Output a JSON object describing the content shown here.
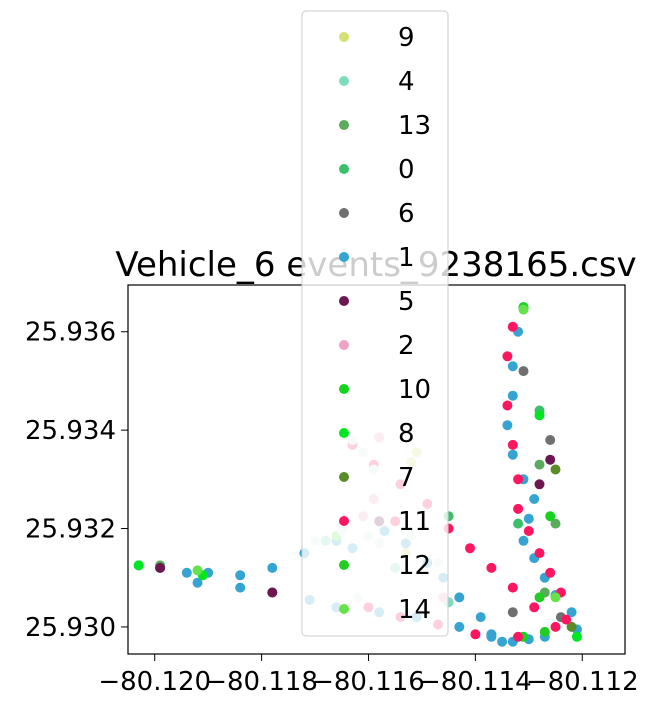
{
  "chart_data": {
    "type": "scatter",
    "title": "Vehicle_6 events_9238165.csv",
    "xlabel": "",
    "ylabel": "",
    "xlim": [
      -80.1205,
      -80.1112
    ],
    "ylim": [
      25.92945,
      25.93695
    ],
    "xticks": [
      -80.12,
      -80.118,
      -80.116,
      -80.114,
      -80.112
    ],
    "xtick_labels": [
      "−80.120",
      "−80.118",
      "−80.116",
      "−80.114",
      "−80.112"
    ],
    "yticks": [
      25.93,
      25.932,
      25.934,
      25.936
    ],
    "ytick_labels": [
      "25.930",
      "25.932",
      "25.934",
      "25.936"
    ],
    "grid": false,
    "legend_position": "upper-center",
    "series": [
      {
        "name": "9",
        "color": "#d4df74",
        "points": [
          [
            -80.1151,
            25.93355
          ],
          [
            -80.1152,
            25.93335
          ],
          [
            -80.1153,
            25.9315
          ]
        ]
      },
      {
        "name": "4",
        "color": "#7ddcbe",
        "points": [
          [
            -80.1168,
            25.93175
          ],
          [
            -80.1155,
            25.9312
          ],
          [
            -80.1145,
            25.9305
          ]
        ]
      },
      {
        "name": "13",
        "color": "#5aab5b",
        "points": [
          [
            -80.1128,
            25.9333
          ],
          [
            -80.1125,
            25.9321
          ],
          [
            -80.1127,
            25.9307
          ],
          [
            -80.1199,
            25.93125
          ]
        ]
      },
      {
        "name": "0",
        "color": "#3cbf6a",
        "points": [
          [
            -80.1132,
            25.9321
          ],
          [
            -80.1145,
            25.93225
          ],
          [
            -80.1128,
            25.9344
          ]
        ]
      },
      {
        "name": "6",
        "color": "#707070",
        "points": [
          [
            -80.1131,
            25.9352
          ],
          [
            -80.1126,
            25.9338
          ],
          [
            -80.1124,
            25.9302
          ],
          [
            -80.1133,
            25.9303
          ]
        ]
      },
      {
        "name": "1",
        "color": "#36a4d0",
        "points": [
          [
            -80.1131,
            25.9365
          ],
          [
            -80.1132,
            25.936
          ],
          [
            -80.1133,
            25.9353
          ],
          [
            -80.1133,
            25.9347
          ],
          [
            -80.1134,
            25.9341
          ],
          [
            -80.1133,
            25.9335
          ],
          [
            -80.1131,
            25.933
          ],
          [
            -80.1129,
            25.9326
          ],
          [
            -80.113,
            25.9322
          ],
          [
            -80.1131,
            25.93175
          ],
          [
            -80.1129,
            25.9314
          ],
          [
            -80.1127,
            25.931
          ],
          [
            -80.1125,
            25.93065
          ],
          [
            -80.1122,
            25.9303
          ],
          [
            -80.1121,
            25.92995
          ],
          [
            -80.1127,
            25.9298
          ],
          [
            -80.1133,
            25.9297
          ],
          [
            -80.1137,
            25.92985
          ],
          [
            -80.1139,
            25.9302
          ],
          [
            -80.1143,
            25.9306
          ],
          [
            -80.1146,
            25.931
          ],
          [
            -80.1149,
            25.9313
          ],
          [
            -80.1153,
            25.9317
          ],
          [
            -80.1157,
            25.93195
          ],
          [
            -80.1163,
            25.9316
          ],
          [
            -80.1166,
            25.93175
          ],
          [
            -80.1172,
            25.9315
          ],
          [
            -80.1178,
            25.9312
          ],
          [
            -80.1184,
            25.93105
          ],
          [
            -80.119,
            25.9311
          ],
          [
            -80.1194,
            25.9311
          ],
          [
            -80.1199,
            25.9312
          ],
          [
            -80.1203,
            25.93125
          ],
          [
            -80.1192,
            25.9309
          ],
          [
            -80.1184,
            25.9308
          ],
          [
            -80.1178,
            25.9307
          ],
          [
            -80.1171,
            25.93055
          ],
          [
            -80.1166,
            25.9304
          ],
          [
            -80.1158,
            25.9303
          ],
          [
            -80.1151,
            25.9302
          ],
          [
            -80.1143,
            25.93
          ],
          [
            -80.1137,
            25.9298
          ],
          [
            -80.113,
            25.92975
          ],
          [
            -80.1135,
            25.9297
          ]
        ]
      },
      {
        "name": "5",
        "color": "#6d164f",
        "points": [
          [
            -80.1126,
            25.9334
          ],
          [
            -80.1128,
            25.9329
          ],
          [
            -80.1158,
            25.93215
          ],
          [
            -80.1178,
            25.9307
          ],
          [
            -80.1199,
            25.9312
          ]
        ]
      },
      {
        "name": "2",
        "color": "#efa3c4",
        "points": [
          [
            -80.1159,
            25.9326
          ],
          [
            -80.1161,
            25.93225
          ],
          [
            -80.1158,
            25.93385
          ],
          [
            -80.1146,
            25.9306
          ]
        ]
      },
      {
        "name": "10",
        "color": "#14d41e",
        "points": [
          [
            -80.1131,
            25.9365
          ],
          [
            -80.1131,
            25.9298
          ],
          [
            -80.1126,
            25.93225
          ]
        ]
      },
      {
        "name": "8",
        "color": "#00e623",
        "points": [
          [
            -80.1203,
            25.93125
          ],
          [
            -80.1191,
            25.93105
          ],
          [
            -80.1128,
            25.9343
          ],
          [
            -80.1121,
            25.9298
          ]
        ]
      },
      {
        "name": "7",
        "color": "#5a8c27",
        "points": [
          [
            -80.1125,
            25.9332
          ],
          [
            -80.1122,
            25.93
          ]
        ]
      },
      {
        "name": "11",
        "color": "#ff1660",
        "points": [
          [
            -80.1163,
            25.9337
          ],
          [
            -80.1159,
            25.9333
          ],
          [
            -80.1154,
            25.9329
          ],
          [
            -80.1149,
            25.9325
          ],
          [
            -80.1145,
            25.932
          ],
          [
            -80.1141,
            25.9316
          ],
          [
            -80.1137,
            25.9312
          ],
          [
            -80.1133,
            25.9308
          ],
          [
            -80.1129,
            25.9304
          ],
          [
            -80.1125,
            25.93
          ],
          [
            -80.1132,
            25.9298
          ],
          [
            -80.114,
            25.92985
          ],
          [
            -80.1147,
            25.93005
          ],
          [
            -80.1154,
            25.9302
          ],
          [
            -80.116,
            25.9304
          ],
          [
            -80.1134,
            25.9355
          ],
          [
            -80.1134,
            25.9345
          ],
          [
            -80.1133,
            25.9337
          ],
          [
            -80.1132,
            25.933
          ],
          [
            -80.1132,
            25.9324
          ],
          [
            -80.113,
            25.93195
          ],
          [
            -80.1128,
            25.9315
          ],
          [
            -80.1126,
            25.9311
          ],
          [
            -80.1124,
            25.9307
          ],
          [
            -80.1133,
            25.9361
          ],
          [
            -80.1123,
            25.93015
          ],
          [
            -80.1155,
            25.93215
          ]
        ]
      },
      {
        "name": "12",
        "color": "#22cc22",
        "points": [
          [
            -80.1128,
            25.9306
          ],
          [
            -80.1127,
            25.9299
          ]
        ]
      },
      {
        "name": "14",
        "color": "#66e34a",
        "points": [
          [
            -80.1131,
            25.93645
          ],
          [
            -80.1125,
            25.9306
          ],
          [
            -80.1192,
            25.93115
          ],
          [
            -80.1166,
            25.93185
          ]
        ]
      },
      {
        "name": "",
        "color": "#d8f0e8",
        "points": [
          [
            -80.1163,
            25.9338
          ],
          [
            -80.1161,
            25.93355
          ],
          [
            -80.1159,
            25.9332
          ],
          [
            -80.1165,
            25.93195
          ],
          [
            -80.116,
            25.93185
          ],
          [
            -80.1158,
            25.9317
          ],
          [
            -80.1152,
            25.93185
          ],
          [
            -80.1147,
            25.9313
          ],
          [
            -80.1162,
            25.9306
          ],
          [
            -80.117,
            25.93175
          ]
        ]
      }
    ]
  }
}
